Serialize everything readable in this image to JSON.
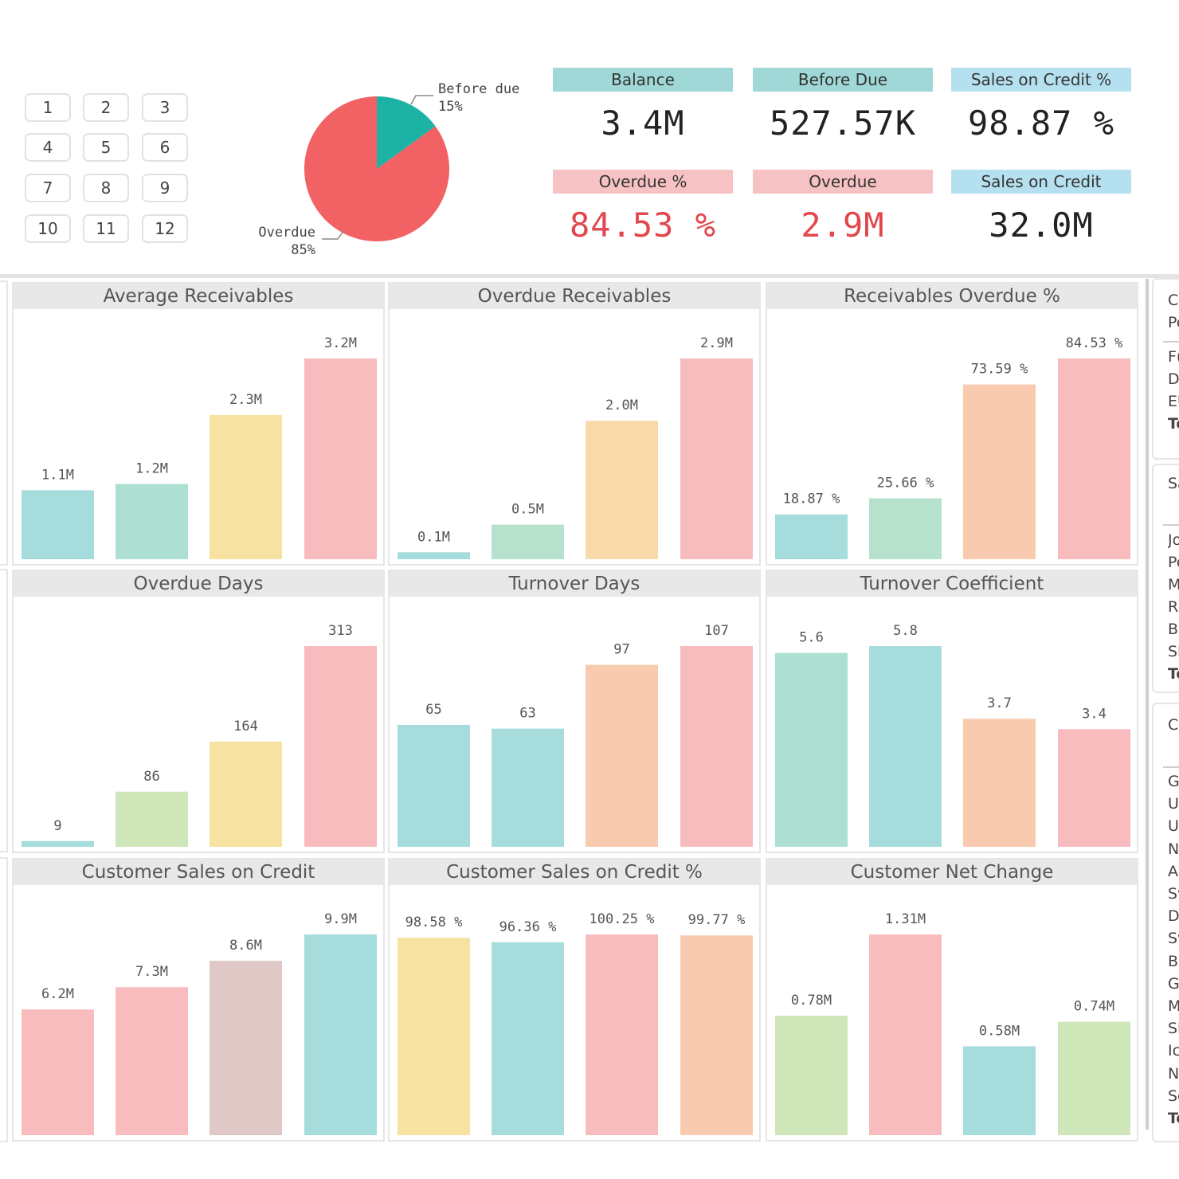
{
  "slicer": {
    "months": [
      "1",
      "2",
      "3",
      "4",
      "5",
      "6",
      "7",
      "8",
      "9",
      "10",
      "11",
      "12"
    ]
  },
  "pie": {
    "slices": [
      {
        "label": "Before due",
        "pct_label": "15%",
        "value": 15,
        "color": "#1cb3a4"
      },
      {
        "label": "Overdue",
        "pct_label": "85%",
        "value": 85,
        "color": "#f26163"
      }
    ]
  },
  "kpis": [
    {
      "label": "Balance",
      "value": "3.4M",
      "header_color": "#9fd8d6",
      "value_color": "normal"
    },
    {
      "label": "Before Due",
      "value": "527.57K",
      "header_color": "#9fd8d6",
      "value_color": "normal"
    },
    {
      "label": "Sales on Credit %",
      "value": "98.87 %",
      "header_color": "#b5e0ef",
      "value_color": "normal"
    },
    {
      "label": "Overdue %",
      "value": "84.53 %",
      "header_color": "#f7c2c4",
      "value_color": "red"
    },
    {
      "label": "Overdue",
      "value": "2.9M",
      "header_color": "#f7c2c4",
      "value_color": "red"
    },
    {
      "label": "Sales on Credit",
      "value": "32.0M",
      "header_color": "#b5e0ef",
      "value_color": "normal"
    }
  ],
  "chart_data": [
    {
      "type": "bar",
      "title": "Average Receivables",
      "values": [
        1.1,
        1.2,
        2.3,
        3.2
      ],
      "labels": [
        "1.1M",
        "1.2M",
        "2.3M",
        "3.2M"
      ],
      "colors": [
        "#a7dcdc",
        "#addfd3",
        "#f8e2a2",
        "#f8bcbe"
      ]
    },
    {
      "type": "bar",
      "title": "Overdue Receivables",
      "values": [
        0.1,
        0.5,
        2.0,
        2.9
      ],
      "labels": [
        "0.1M",
        "0.5M",
        "2.0M",
        "2.9M"
      ],
      "colors": [
        "#a7dcdc",
        "#b5e1cd",
        "#f8d9aa",
        "#f8bcbe"
      ]
    },
    {
      "type": "bar",
      "title": "Receivables Overdue %",
      "values": [
        18.87,
        25.66,
        73.59,
        84.53
      ],
      "labels": [
        "18.87 %",
        "25.66 %",
        "73.59 %",
        "84.53 %"
      ],
      "colors": [
        "#a7dcdc",
        "#b5e1cd",
        "#f8cbb0",
        "#f8bcbe"
      ]
    },
    {
      "type": "bar",
      "title": "Overdue Days",
      "values": [
        9,
        86,
        164,
        313
      ],
      "labels": [
        "9",
        "86",
        "164",
        "313"
      ],
      "colors": [
        "#a7dcdc",
        "#cfe6b8",
        "#f8e2a2",
        "#f8bcbe"
      ]
    },
    {
      "type": "bar",
      "title": "Turnover Days",
      "values": [
        65,
        63,
        97,
        107
      ],
      "labels": [
        "65",
        "63",
        "97",
        "107"
      ],
      "colors": [
        "#a7dcdc",
        "#a7dcdc",
        "#f8cbb0",
        "#f8bcbe"
      ]
    },
    {
      "type": "bar",
      "title": "Turnover Coefficient",
      "values": [
        5.6,
        5.8,
        3.7,
        3.4
      ],
      "labels": [
        "5.6",
        "5.8",
        "3.7",
        "3.4"
      ],
      "colors": [
        "#addfd3",
        "#a7dcdc",
        "#f8cbb0",
        "#f8bcbe"
      ]
    },
    {
      "type": "bar",
      "title": "Customer Sales on Credit",
      "values": [
        6.2,
        7.3,
        8.6,
        9.9
      ],
      "labels": [
        "6.2M",
        "7.3M",
        "8.6M",
        "9.9M"
      ],
      "colors": [
        "#f8bcbe",
        "#f8bcbe",
        "#e0c8c6",
        "#a7dcdc"
      ]
    },
    {
      "type": "bar",
      "title": "Customer Sales on Credit %",
      "values": [
        98.58,
        96.36,
        100.25,
        99.77
      ],
      "labels": [
        "98.58 %",
        "96.36 %",
        "100.25 %",
        "99.77 %"
      ],
      "colors": [
        "#f8e2a2",
        "#a7dcdc",
        "#f8bcbe",
        "#f8cbb0"
      ]
    },
    {
      "type": "bar",
      "title": "Customer Net Change",
      "values": [
        0.78,
        1.31,
        0.58,
        0.74
      ],
      "labels": [
        "0.78M",
        "1.31M",
        "0.58M",
        "0.74M"
      ],
      "colors": [
        "#cfe6b8",
        "#f8bcbe",
        "#a7dcdc",
        "#cfe6b8"
      ]
    }
  ],
  "side_panels": {
    "panel1": {
      "header": [
        "C",
        "Pe"
      ],
      "rows": [
        "F(",
        "D",
        "EU"
      ],
      "total": "To"
    },
    "panel2": {
      "header": [
        "Sa"
      ],
      "rows": [
        "Jo",
        "Pe",
        "M",
        "R",
        "B",
        "Sl"
      ],
      "total": "To"
    },
    "panel3": {
      "header": [
        "C"
      ],
      "rows": [
        "G",
        "U",
        "U",
        "N",
        "A",
        "Sv",
        "D",
        "Sv",
        "Be",
        "G",
        "M",
        "Sl",
        "Ic",
        "N",
        "Sc"
      ],
      "total": "To"
    }
  }
}
